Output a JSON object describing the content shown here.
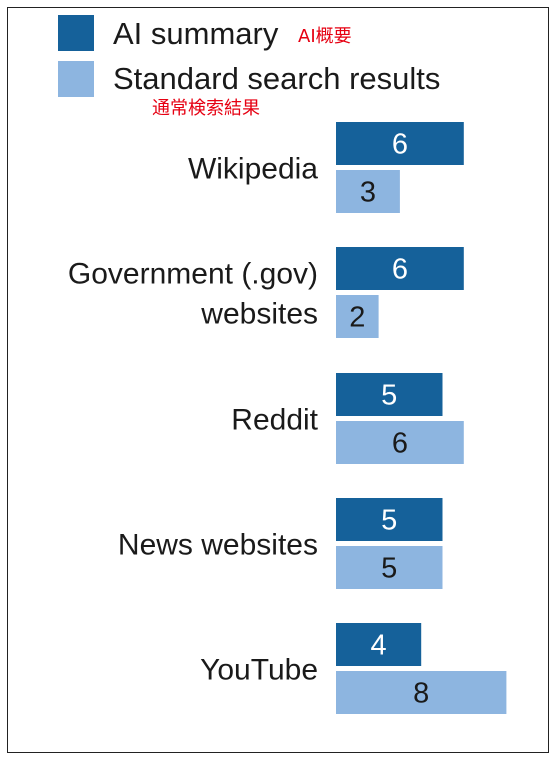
{
  "legend": {
    "ai_label": "AI summary",
    "ai_label_jp": "AI概要",
    "std_label": "Standard search results",
    "std_label_jp": "通常検索結果"
  },
  "colors": {
    "ai": "#15619a",
    "standard": "#8db5e0",
    "ai_label_text": "#ffffff",
    "standard_label_text": "#1a1a1a",
    "annotation": "#e60012"
  },
  "chart_data": {
    "type": "bar",
    "orientation": "horizontal",
    "categories": [
      [
        "Wikipedia"
      ],
      [
        "Government (.gov)",
        "websites"
      ],
      [
        "Reddit"
      ],
      [
        "News websites"
      ],
      [
        "YouTube"
      ]
    ],
    "series": [
      {
        "name": "AI summary",
        "values": [
          6,
          6,
          5,
          5,
          4
        ]
      },
      {
        "name": "Standard search results",
        "values": [
          3,
          2,
          6,
          5,
          8
        ]
      }
    ],
    "xlim": [
      0,
      8
    ],
    "grid": false,
    "legend_position": "top-left"
  }
}
